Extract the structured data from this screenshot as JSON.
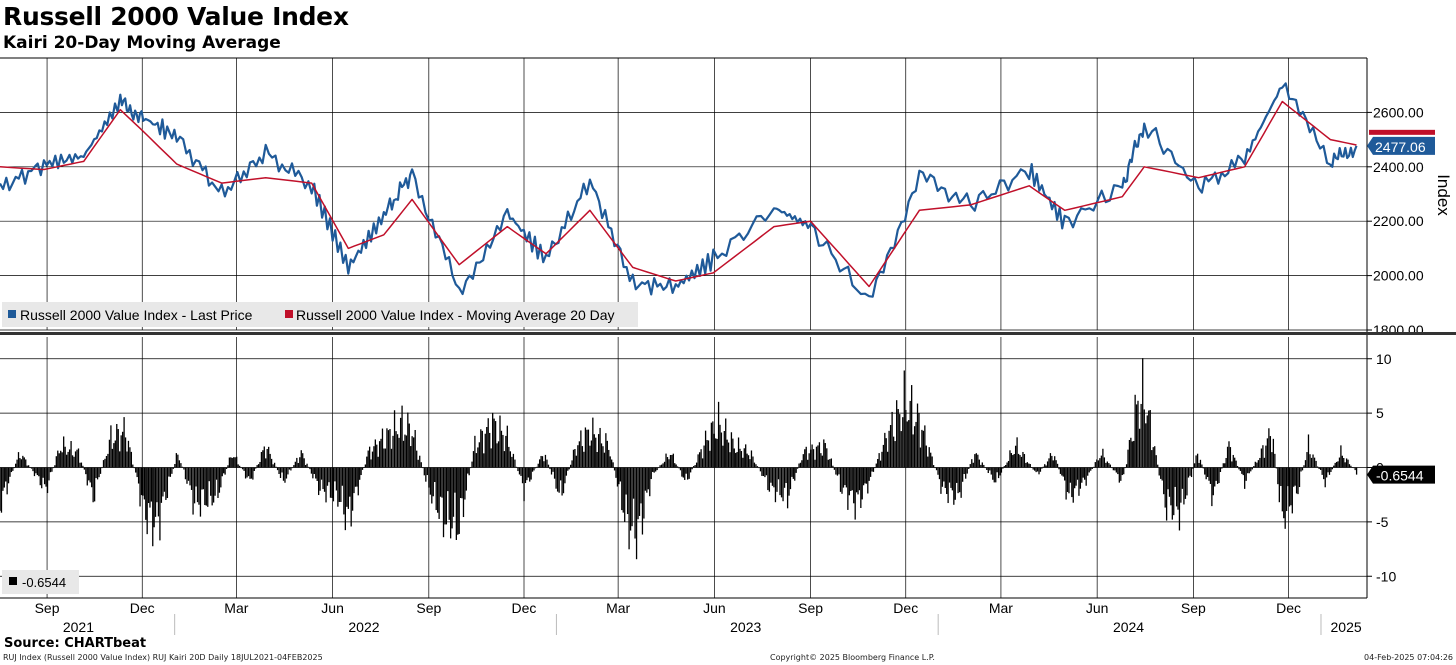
{
  "title": "Russell 2000 Value Index",
  "subtitle": "Kairi 20-Day Moving Average",
  "source": "Source: CHARTbeat",
  "footer": {
    "left": "RUJ Index (Russell 2000 Value Index) RUJ Kairi 20D  Daily 18JUL2021-04FEB2025",
    "center": "Copyright© 2025 Bloomberg Finance L.P.",
    "right": "04-Feb-2025 07:04:26"
  },
  "colors": {
    "price": "#1f5a99",
    "moving_average": "#c0102a",
    "kairi_bars": "#000000",
    "grid": "#000000",
    "last_price_tag": "#1f5a99",
    "ma_tag": "#c0102a",
    "kairi_tag": "#000000"
  },
  "chart_data": [
    {
      "type": "line",
      "panel": "upper",
      "ylabel": "Index",
      "ylim": [
        1800,
        2800
      ],
      "yticks": [
        "1800.00",
        "2000.00",
        "2200.00",
        "2400.00",
        "2600.00"
      ],
      "ytick_values": [
        1800,
        2000,
        2200,
        2400,
        2600
      ],
      "grid": true,
      "legend_placement": "bottom-left",
      "last_value_label": "2477.06",
      "x_dates": [
        "2021-07-18",
        "2021-08-29",
        "2021-10-06",
        "2021-11-10",
        "2021-12-02",
        "2022-01-03",
        "2022-02-15",
        "2022-03-29",
        "2022-05-12",
        "2022-06-16",
        "2022-07-20",
        "2022-08-16",
        "2022-09-30",
        "2022-11-15",
        "2022-12-22",
        "2023-02-02",
        "2023-03-15",
        "2023-04-25",
        "2023-05-31",
        "2023-07-28",
        "2023-09-01",
        "2023-10-27",
        "2023-12-14",
        "2024-02-01",
        "2024-03-28",
        "2024-05-01",
        "2024-06-25",
        "2024-07-16",
        "2024-09-06",
        "2024-10-20",
        "2024-11-25",
        "2025-01-10",
        "2025-02-04"
      ],
      "series": [
        {
          "name": "Russell 2000 Value Index - Last Price",
          "values": [
            2320,
            2410,
            2440,
            2640,
            2580,
            2510,
            2300,
            2450,
            2330,
            2030,
            2220,
            2380,
            1940,
            2230,
            2060,
            2350,
            1970,
            1960,
            2060,
            2250,
            2180,
            1900,
            2370,
            2260,
            2390,
            2190,
            2330,
            2560,
            2320,
            2430,
            2700,
            2410,
            2477
          ]
        },
        {
          "name": "Russell 2000 Value Index - Moving Average 20 Day",
          "values": [
            2400,
            2390,
            2420,
            2610,
            2530,
            2410,
            2340,
            2360,
            2340,
            2100,
            2150,
            2280,
            2040,
            2180,
            2080,
            2240,
            2030,
            1980,
            2010,
            2180,
            2200,
            1960,
            2240,
            2260,
            2330,
            2240,
            2290,
            2400,
            2360,
            2400,
            2640,
            2500,
            2480
          ]
        }
      ]
    },
    {
      "type": "bar",
      "panel": "lower",
      "ylim": [
        -12,
        12
      ],
      "yticks": [
        "-10",
        "-5",
        "0",
        "5",
        "10"
      ],
      "ytick_values": [
        -10,
        -5,
        0,
        5,
        10
      ],
      "grid": true,
      "legend_placement": "bottom-left",
      "last_value_label": "-0.6544",
      "legend_entry": "-0.6544",
      "series": [
        {
          "name": "Kairi 20D",
          "x_dates": [
            "2021-07-18",
            "2021-08-06",
            "2021-08-31",
            "2021-09-14",
            "2021-10-01",
            "2021-10-15",
            "2021-11-01",
            "2021-11-15",
            "2021-12-03",
            "2021-12-15",
            "2022-01-04",
            "2022-01-20",
            "2022-02-10",
            "2022-02-25",
            "2022-03-14",
            "2022-03-29",
            "2022-04-15",
            "2022-05-02",
            "2022-05-20",
            "2022-06-06",
            "2022-06-16",
            "2022-07-05",
            "2022-07-20",
            "2022-08-05",
            "2022-08-16",
            "2022-09-01",
            "2022-09-15",
            "2022-09-30",
            "2022-10-15",
            "2022-11-01",
            "2022-11-15",
            "2022-12-01",
            "2022-12-20",
            "2023-01-05",
            "2023-01-20",
            "2023-02-02",
            "2023-02-20",
            "2023-03-10",
            "2023-03-20",
            "2023-04-03",
            "2023-04-20",
            "2023-05-05",
            "2023-05-25",
            "2023-06-05",
            "2023-06-20",
            "2023-07-05",
            "2023-07-25",
            "2023-08-10",
            "2023-08-25",
            "2023-09-15",
            "2023-10-01",
            "2023-10-15",
            "2023-10-27",
            "2023-11-15",
            "2023-12-01",
            "2023-12-15",
            "2024-01-05",
            "2024-01-20",
            "2024-02-05",
            "2024-02-25",
            "2024-03-15",
            "2024-04-05",
            "2024-04-20",
            "2024-05-05",
            "2024-05-20",
            "2024-06-05",
            "2024-06-25",
            "2024-07-10",
            "2024-07-16",
            "2024-08-05",
            "2024-08-20",
            "2024-09-05",
            "2024-09-20",
            "2024-10-05",
            "2024-10-20",
            "2024-11-05",
            "2024-11-15",
            "2024-11-25",
            "2024-12-10",
            "2024-12-20",
            "2025-01-05",
            "2025-01-20",
            "2025-02-04"
          ],
          "values": [
            -5,
            2,
            -3,
            3,
            2,
            -4,
            4,
            5,
            -6,
            -8,
            2,
            -5,
            -4,
            2,
            -2,
            3,
            -2,
            2,
            -3,
            -4,
            -7,
            2,
            4,
            6,
            5,
            -3,
            -7,
            -8,
            3,
            6,
            4,
            -3,
            2,
            -4,
            3,
            5,
            3,
            -8,
            -9,
            -1,
            2,
            -2,
            4,
            6,
            3,
            2,
            -3,
            -4,
            2,
            3,
            -3,
            -5,
            -2,
            5,
            9,
            6,
            -3,
            -4,
            2,
            -2,
            3,
            -1,
            2,
            -4,
            -2,
            2,
            -2,
            9,
            10,
            -5,
            -6,
            2,
            -4,
            3,
            -2,
            2,
            5,
            -7,
            -3,
            3,
            -2,
            2,
            -0.6544
          ]
        }
      ]
    }
  ],
  "x_axis": {
    "months": [
      {
        "label": "Sep",
        "date": "2021-09-01"
      },
      {
        "label": "Dec",
        "date": "2021-12-01"
      },
      {
        "label": "Mar",
        "date": "2022-03-01"
      },
      {
        "label": "Jun",
        "date": "2022-06-01"
      },
      {
        "label": "Sep",
        "date": "2022-09-01"
      },
      {
        "label": "Dec",
        "date": "2022-12-01"
      },
      {
        "label": "Mar",
        "date": "2023-03-01"
      },
      {
        "label": "Jun",
        "date": "2023-06-01"
      },
      {
        "label": "Sep",
        "date": "2023-09-01"
      },
      {
        "label": "Dec",
        "date": "2023-12-01"
      },
      {
        "label": "Mar",
        "date": "2024-03-01"
      },
      {
        "label": "Jun",
        "date": "2024-06-01"
      },
      {
        "label": "Sep",
        "date": "2024-09-01"
      },
      {
        "label": "Dec",
        "date": "2024-12-01"
      }
    ],
    "years": [
      {
        "label": "2021",
        "date": "2021-10-01"
      },
      {
        "label": "2022",
        "date": "2022-07-01"
      },
      {
        "label": "2023",
        "date": "2023-07-01"
      },
      {
        "label": "2024",
        "date": "2024-07-01"
      },
      {
        "label": "2025",
        "date": "2025-01-25"
      }
    ],
    "year_boundaries": [
      "2022-01-01",
      "2023-01-01",
      "2024-01-01",
      "2025-01-01"
    ]
  }
}
